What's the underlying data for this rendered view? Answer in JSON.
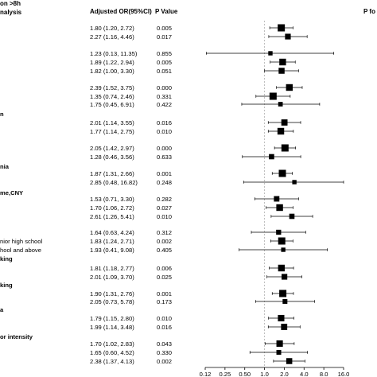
{
  "header": {
    "left_title_line1": "on >8h",
    "left_title_line2": "nalysis",
    "or_col": "Adjusted OR(95%CI)",
    "p_col": "P Value",
    "right_title": "P fo"
  },
  "rows": [
    {
      "label": "",
      "or_text": "1.80 (1.20, 2.72)",
      "p": "0.005",
      "or": 1.8,
      "lo": 1.2,
      "hi": 2.72,
      "w": 1.0
    },
    {
      "label": "",
      "or_text": "2.27 (1.16, 4.46)",
      "p": "0.017",
      "or": 2.27,
      "lo": 1.16,
      "hi": 4.46,
      "w": 0.7
    },
    {
      "label": "",
      "or_text": "1.23 (0.13, 11.35)",
      "p": "0.855",
      "or": 1.23,
      "lo": 0.13,
      "hi": 11.35,
      "w": 0.4
    },
    {
      "label": "",
      "or_text": "1.89 (1.22, 2.94)",
      "p": "0.005",
      "or": 1.89,
      "lo": 1.22,
      "hi": 2.94,
      "w": 0.9
    },
    {
      "label": "",
      "or_text": "1.82 (1.00, 3.30)",
      "p": "0.051",
      "or": 1.82,
      "lo": 1.0,
      "hi": 3.3,
      "w": 0.75
    },
    {
      "label": "",
      "or_text": "2.39 (1.52, 3.75)",
      "p": "0.000",
      "or": 2.39,
      "lo": 1.52,
      "hi": 3.75,
      "w": 0.9
    },
    {
      "label": "",
      "or_text": "1.35 (0.74, 2.46)",
      "p": "0.331",
      "or": 1.35,
      "lo": 0.74,
      "hi": 2.46,
      "w": 1.0
    },
    {
      "label": "",
      "or_text": "1.75 (0.45, 6.91)",
      "p": "0.422",
      "or": 1.75,
      "lo": 0.45,
      "hi": 6.91,
      "w": 0.45
    },
    {
      "label": "n",
      "or_text": "",
      "p": "",
      "header": true
    },
    {
      "label": "",
      "or_text": "2.01 (1.14, 3.55)",
      "p": "0.016",
      "or": 2.01,
      "lo": 1.14,
      "hi": 3.55,
      "w": 0.8
    },
    {
      "label": "",
      "or_text": "1.77 (1.14, 2.75)",
      "p": "0.010",
      "or": 1.77,
      "lo": 1.14,
      "hi": 2.75,
      "w": 0.9
    },
    {
      "label": "",
      "or_text": "2.05 (1.42, 2.97)",
      "p": "0.000",
      "or": 2.05,
      "lo": 1.42,
      "hi": 2.97,
      "w": 1.0
    },
    {
      "label": "",
      "or_text": "1.28 (0.46, 3.56)",
      "p": "0.633",
      "or": 1.28,
      "lo": 0.46,
      "hi": 3.56,
      "w": 0.6
    },
    {
      "label": "nia",
      "or_text": "",
      "p": "",
      "header": true
    },
    {
      "label": "",
      "or_text": "1.87 (1.31, 2.66)",
      "p": "0.001",
      "or": 1.87,
      "lo": 1.31,
      "hi": 2.66,
      "w": 1.0
    },
    {
      "label": "",
      "or_text": "2.85 (0.48, 16.82)",
      "p": "0.248",
      "or": 2.85,
      "lo": 0.48,
      "hi": 16.82,
      "w": 0.4
    },
    {
      "label": "me,CNY",
      "or_text": "",
      "p": "",
      "header": true
    },
    {
      "label": "",
      "or_text": "1.53 (0.71, 3.30)",
      "p": "0.282",
      "or": 1.53,
      "lo": 0.71,
      "hi": 3.3,
      "w": 0.65
    },
    {
      "label": "",
      "or_text": "1.70 (1.06, 2.72)",
      "p": "0.027",
      "or": 1.7,
      "lo": 1.06,
      "hi": 2.72,
      "w": 0.9
    },
    {
      "label": "",
      "or_text": "2.61 (1.26, 5.41)",
      "p": "0.010",
      "or": 2.61,
      "lo": 1.26,
      "hi": 5.41,
      "w": 0.6
    },
    {
      "label": "",
      "or_text": "1.64 (0.63, 4.24)",
      "p": "0.312",
      "or": 1.64,
      "lo": 0.63,
      "hi": 4.24,
      "w": 0.55
    },
    {
      "label": "nior high school",
      "or_text": "1.83 (1.24, 2.71)",
      "p": "0.002",
      "or": 1.83,
      "lo": 1.24,
      "hi": 2.71,
      "w": 1.0
    },
    {
      "label": "hool and above",
      "or_text": "1.93 (0.41, 9.08)",
      "p": "0.405",
      "or": 1.93,
      "lo": 0.41,
      "hi": 9.08,
      "w": 0.4
    },
    {
      "label": "king",
      "or_text": "",
      "p": "",
      "header": true
    },
    {
      "label": "",
      "or_text": "1.81 (1.18, 2.77)",
      "p": "0.006",
      "or": 1.81,
      "lo": 1.18,
      "hi": 2.77,
      "w": 0.9
    },
    {
      "label": "",
      "or_text": "2.01 (1.09, 3.70)",
      "p": "0.025",
      "or": 2.01,
      "lo": 1.09,
      "hi": 3.7,
      "w": 0.7
    },
    {
      "label": "king",
      "or_text": "",
      "p": "",
      "header": true
    },
    {
      "label": "",
      "or_text": "1.90 (1.31, 2.76)",
      "p": "0.001",
      "or": 1.9,
      "lo": 1.31,
      "hi": 2.76,
      "w": 1.0
    },
    {
      "label": "",
      "or_text": "2.05 (0.73, 5.78)",
      "p": "0.173",
      "or": 2.05,
      "lo": 0.73,
      "hi": 5.78,
      "w": 0.5
    },
    {
      "label": "a",
      "or_text": "",
      "p": "",
      "header": true
    },
    {
      "label": "",
      "or_text": "1.79 (1.15, 2.80)",
      "p": "0.010",
      "or": 1.79,
      "lo": 1.15,
      "hi": 2.8,
      "w": 0.85
    },
    {
      "label": "",
      "or_text": "1.99 (1.14, 3.48)",
      "p": "0.016",
      "or": 1.99,
      "lo": 1.14,
      "hi": 3.48,
      "w": 0.8
    },
    {
      "label": "or intensity",
      "or_text": "",
      "p": "",
      "header": true
    },
    {
      "label": "",
      "or_text": "1.70 (1.02, 2.83)",
      "p": "0.043",
      "or": 1.7,
      "lo": 1.02,
      "hi": 2.83,
      "w": 0.85
    },
    {
      "label": "",
      "or_text": "1.65 (0.60, 4.52)",
      "p": "0.330",
      "or": 1.65,
      "lo": 0.6,
      "hi": 4.52,
      "w": 0.5
    },
    {
      "label": "",
      "or_text": "2.38 (1.37, 4.13)",
      "p": "0.002",
      "or": 2.38,
      "lo": 1.37,
      "hi": 4.13,
      "w": 0.75
    }
  ],
  "chart_data": {
    "type": "forest",
    "xscale": "log2",
    "xlim": [
      0.125,
      16.0
    ],
    "ticks": [
      {
        "v": 0.125,
        "label": "0.12"
      },
      {
        "v": 0.25,
        "label": "0.25"
      },
      {
        "v": 0.5,
        "label": "0.50"
      },
      {
        "v": 1.0,
        "label": "1.0"
      },
      {
        "v": 2.0,
        "label": "2.0"
      },
      {
        "v": 4.0,
        "label": "4.0"
      },
      {
        "v": 8.0,
        "label": "8.0"
      },
      {
        "v": 16.0,
        "label": "16.0"
      }
    ],
    "reference_line": 1.0
  }
}
